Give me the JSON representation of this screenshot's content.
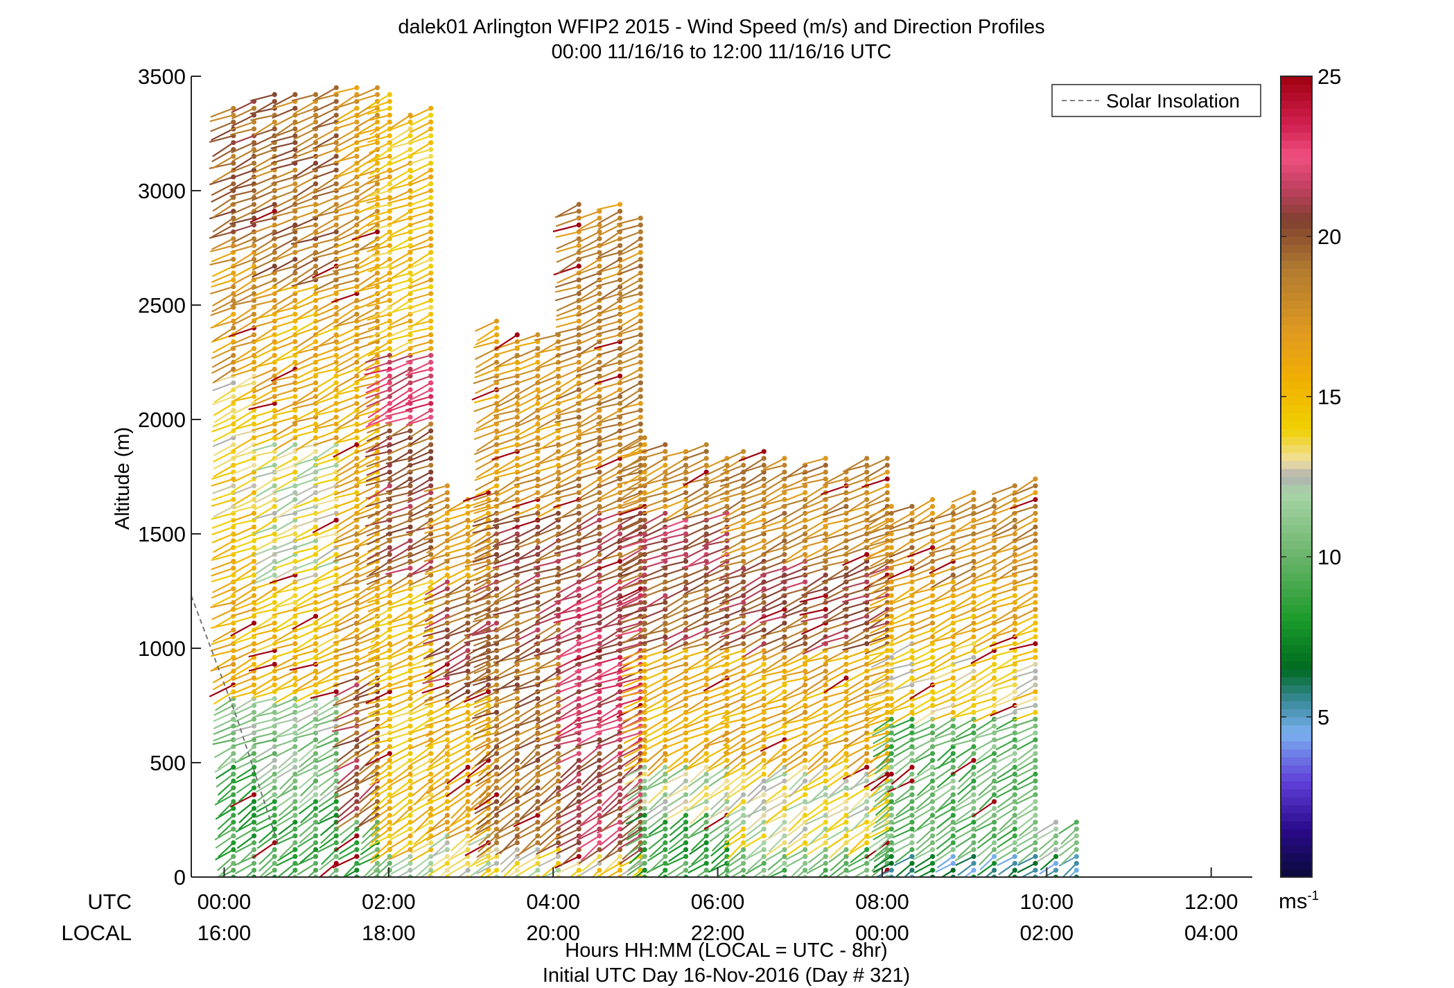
{
  "chart_data": {
    "type": "wind-barb profile (scatter)",
    "title": "dalek01 Arlington WFIP2 2015 - Wind Speed (m/s) and Direction Profiles",
    "subtitle": "00:00 11/16/16 to 12:00 11/16/16  UTC",
    "ylabel": "Altitude (m)",
    "xlabel": "Hours HH:MM  (LOCAL = UTC - 8hr)",
    "xlabel2": "Initial UTC Day 16-Nov-2016 (Day # 321)",
    "x_axis_name_utc": "UTC",
    "x_axis_name_local": "LOCAL",
    "xlim_hours": [
      -0.4,
      12.5
    ],
    "ylim": [
      0,
      3500
    ],
    "y_ticks": [
      0,
      500,
      1000,
      1500,
      2000,
      2500,
      3000,
      3500
    ],
    "y_tick_labels": [
      "0",
      "500",
      "1000",
      "1500",
      "2000",
      "2500",
      "3000",
      "3500"
    ],
    "x_ticks_hours": [
      0,
      2,
      4,
      6,
      8,
      10,
      12
    ],
    "x_tick_labels_utc": [
      "00:00",
      "02:00",
      "04:00",
      "06:00",
      "08:00",
      "10:00",
      "12:00"
    ],
    "x_tick_labels_local": [
      "16:00",
      "18:00",
      "20:00",
      "22:00",
      "00:00",
      "02:00",
      "04:00"
    ],
    "legend": {
      "entry": "Solar Insolation",
      "placement": "top-right",
      "style": "dashed gray line"
    },
    "solar_insolation_line": {
      "x_hours": [
        -0.4,
        0.15,
        0.65
      ],
      "y": [
        1230,
        700,
        150
      ]
    },
    "colorbar": {
      "label": "ms-1",
      "label_base": "ms",
      "label_exp": "-1",
      "range": [
        0,
        25
      ],
      "ticks": [
        5,
        10,
        15,
        20,
        25
      ],
      "tick_labels": [
        "5",
        "10",
        "15",
        "20",
        "25"
      ],
      "stops": [
        {
          "v": 0,
          "c": "#0a0a3a"
        },
        {
          "v": 1.5,
          "c": "#2a0a8a"
        },
        {
          "v": 3,
          "c": "#6040d8"
        },
        {
          "v": 4.5,
          "c": "#7ab0f0"
        },
        {
          "v": 5.5,
          "c": "#3a8a9a"
        },
        {
          "v": 6.5,
          "c": "#006a20"
        },
        {
          "v": 8,
          "c": "#1a9a2a"
        },
        {
          "v": 10,
          "c": "#6ab46a"
        },
        {
          "v": 12,
          "c": "#a8d4a8"
        },
        {
          "v": 12.5,
          "c": "#b0b0b0"
        },
        {
          "v": 13,
          "c": "#f0e0a0"
        },
        {
          "v": 14,
          "c": "#f0d000"
        },
        {
          "v": 15.5,
          "c": "#f0b000"
        },
        {
          "v": 17,
          "c": "#e09a20"
        },
        {
          "v": 19,
          "c": "#b07a30"
        },
        {
          "v": 20.5,
          "c": "#804030"
        },
        {
          "v": 21.5,
          "c": "#c04060"
        },
        {
          "v": 22.5,
          "c": "#f05080"
        },
        {
          "v": 23.5,
          "c": "#d02050"
        },
        {
          "v": 25,
          "c": "#a00010"
        }
      ]
    },
    "sampling": {
      "x_interval_hours": 0.25,
      "altitude_step_m": 30
    },
    "profiles": [
      {
        "t0": 0.0,
        "t1": 0.5,
        "top": 3450,
        "layers": [
          [
            0,
            500,
            9
          ],
          [
            500,
            800,
            11
          ],
          [
            800,
            1600,
            15.5
          ],
          [
            1600,
            2200,
            14
          ],
          [
            2200,
            2800,
            17
          ],
          [
            2800,
            3500,
            19.5
          ]
        ]
      },
      {
        "t0": 0.5,
        "t1": 1.5,
        "top": 3500,
        "layers": [
          [
            0,
            350,
            9
          ],
          [
            350,
            800,
            11
          ],
          [
            800,
            1300,
            15
          ],
          [
            1300,
            1900,
            13
          ],
          [
            1900,
            2600,
            16
          ],
          [
            2600,
            3500,
            19
          ]
        ]
      },
      {
        "t0": 1.5,
        "t1": 1.9,
        "top": 3500,
        "layers": [
          [
            0,
            250,
            9
          ],
          [
            250,
            900,
            20
          ],
          [
            900,
            1600,
            17
          ],
          [
            1600,
            2400,
            16
          ],
          [
            2400,
            3500,
            17
          ]
        ]
      },
      {
        "t0": 1.9,
        "t1": 2.6,
        "top": 3450,
        "layers": [
          [
            0,
            120,
            11
          ],
          [
            120,
            1300,
            15
          ],
          [
            1300,
            2000,
            20
          ],
          [
            2000,
            2300,
            22
          ],
          [
            2300,
            3500,
            15
          ]
        ]
      },
      {
        "t0": 2.6,
        "t1": 3.2,
        "top": 1750,
        "layers": [
          [
            0,
            200,
            13
          ],
          [
            200,
            800,
            16
          ],
          [
            800,
            1300,
            20
          ],
          [
            1300,
            1750,
            17
          ]
        ]
      },
      {
        "t0": 3.2,
        "t1": 4.2,
        "top": 2500,
        "layers": [
          [
            0,
            150,
            13
          ],
          [
            150,
            1000,
            19
          ],
          [
            1000,
            1600,
            20
          ],
          [
            1600,
            2500,
            17
          ]
        ]
      },
      {
        "t0": 4.2,
        "t1": 5.0,
        "top": 3000,
        "layers": [
          [
            0,
            100,
            14
          ],
          [
            100,
            600,
            21
          ],
          [
            600,
            1300,
            22
          ],
          [
            1300,
            1600,
            20
          ],
          [
            1600,
            3000,
            18
          ]
        ]
      },
      {
        "t0": 5.0,
        "t1": 6.2,
        "top": 1950,
        "layers": [
          [
            0,
            300,
            9
          ],
          [
            300,
            500,
            12
          ],
          [
            500,
            1000,
            16
          ],
          [
            1000,
            1350,
            20
          ],
          [
            1350,
            1600,
            21
          ],
          [
            1600,
            1950,
            18
          ]
        ]
      },
      {
        "t0": 6.2,
        "t1": 8.0,
        "top": 1900,
        "layers": [
          [
            0,
            150,
            10
          ],
          [
            150,
            500,
            13
          ],
          [
            500,
            1000,
            16
          ],
          [
            1000,
            1400,
            20
          ],
          [
            1400,
            1900,
            18
          ]
        ]
      },
      {
        "t0": 8.0,
        "t1": 10.0,
        "top": 1750,
        "layers": [
          [
            0,
            100,
            6
          ],
          [
            100,
            700,
            10
          ],
          [
            700,
            1050,
            14
          ],
          [
            1050,
            1300,
            16
          ],
          [
            1300,
            1750,
            18
          ]
        ]
      },
      {
        "t0": 10.0,
        "t1": 10.3,
        "top": 300,
        "layers": [
          [
            0,
            100,
            6
          ],
          [
            100,
            300,
            11
          ]
        ]
      }
    ]
  }
}
